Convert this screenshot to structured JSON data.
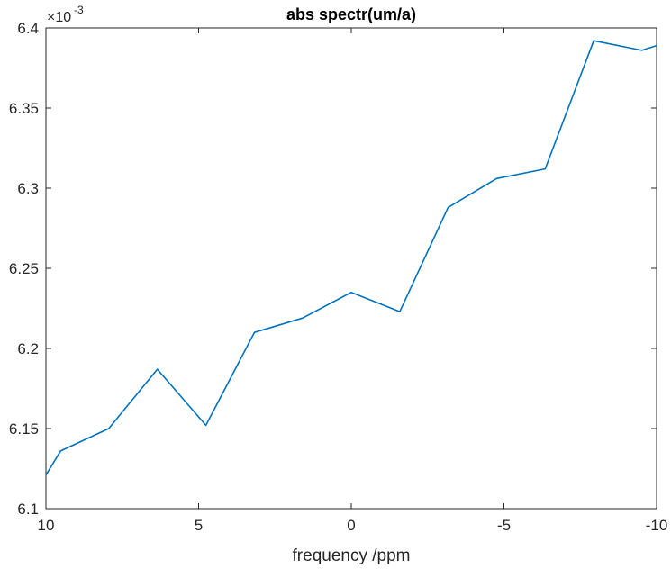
{
  "chart_data": {
    "type": "line",
    "title": "abs spectr(um/a)",
    "xlabel": "frequency /ppm",
    "ylabel": "",
    "xlim": [
      10,
      -10
    ],
    "ylim": [
      6.1,
      6.4
    ],
    "x_reversed": true,
    "y_exponent_prefix": "×10",
    "y_exponent_power": "-3",
    "xticks": [
      10,
      5,
      0,
      -5,
      -10
    ],
    "xtick_labels": [
      "10",
      "5",
      "0",
      "-5",
      "-10"
    ],
    "yticks": [
      6.1,
      6.15,
      6.2,
      6.25,
      6.3,
      6.35,
      6.4
    ],
    "ytick_labels": [
      "6.1",
      "6.15",
      "6.2",
      "6.25",
      "6.3",
      "6.35",
      "6.4"
    ],
    "grid": false,
    "line_color": "#0072BD",
    "series": [
      {
        "x": [
          10,
          9.52,
          7.94,
          6.35,
          4.76,
          3.17,
          1.59,
          0,
          -1.59,
          -3.17,
          -4.76,
          -6.35,
          -7.94,
          -9.52,
          -10
        ],
        "values": [
          6.121,
          6.136,
          6.15,
          6.187,
          6.152,
          6.21,
          6.219,
          6.235,
          6.223,
          6.288,
          6.306,
          6.312,
          6.392,
          6.386,
          6.389
        ]
      }
    ]
  }
}
